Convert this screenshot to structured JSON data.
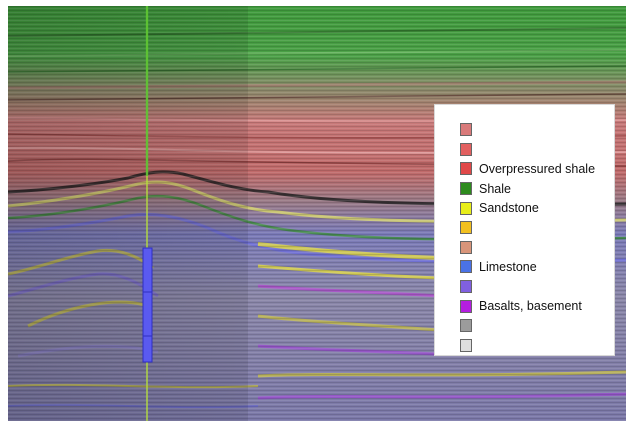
{
  "image": {
    "description_tag": "seismic-section-with-facies-legend"
  },
  "legend": {
    "items": [
      {
        "color": "#d97a7a",
        "label": ""
      },
      {
        "color": "#e26060",
        "label": ""
      },
      {
        "color": "#e04848",
        "label": "Overpressured shale"
      },
      {
        "color": "#2e8b1e",
        "label": "Shale"
      },
      {
        "color": "#e8ee1a",
        "label": "Sandstone"
      },
      {
        "color": "#f2c020",
        "label": ""
      },
      {
        "color": "#d9957a",
        "label": ""
      },
      {
        "color": "#4a72e6",
        "label": "Limestone"
      },
      {
        "color": "#8060e0",
        "label": ""
      },
      {
        "color": "#b41ee0",
        "label": "Basalts, basement"
      },
      {
        "color": "#9c9c9c",
        "label": ""
      },
      {
        "color": "#dedede",
        "label": ""
      }
    ]
  },
  "colors": {
    "shale_green": "#3c8f3a",
    "overpressured_shale": "#c76a6a",
    "sandstone_yellow": "#c8c040",
    "limestone_blue": "#5a6fc0",
    "basement_purple": "#a050c0",
    "wellbore_blue": "#5a5af0"
  }
}
